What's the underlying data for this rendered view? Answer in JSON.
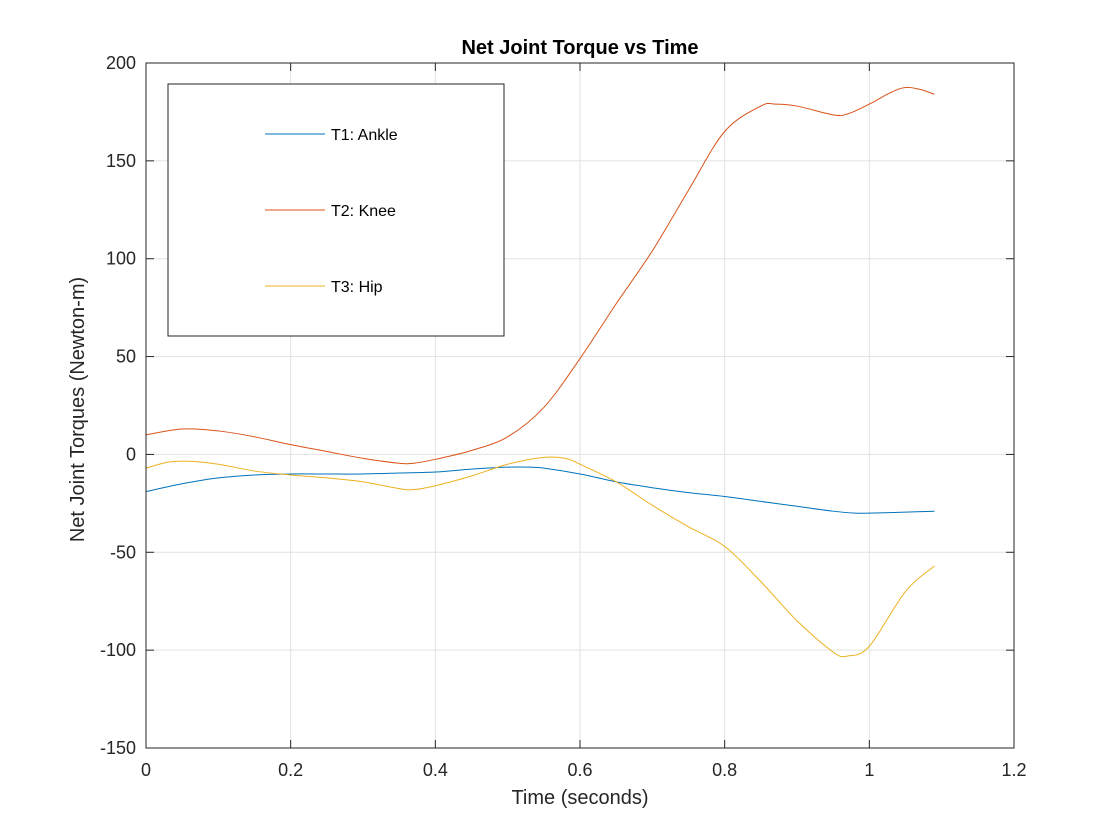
{
  "chart_data": {
    "type": "line",
    "title": "Net Joint Torque vs Time",
    "xlabel": "Time (seconds)",
    "ylabel": "Net Joint Torques (Newton-m)",
    "xlim": [
      0,
      1.2
    ],
    "ylim": [
      -150,
      200
    ],
    "xticks": [
      0,
      0.2,
      0.4,
      0.6,
      0.8,
      1,
      1.2
    ],
    "xtick_labels": [
      "0",
      "0.2",
      "0.4",
      "0.6",
      "0.8",
      "1",
      "1.2"
    ],
    "yticks": [
      -150,
      -100,
      -50,
      0,
      50,
      100,
      150,
      200
    ],
    "ytick_labels": [
      "-150",
      "-100",
      "-50",
      "0",
      "50",
      "100",
      "150",
      "200"
    ],
    "grid": true,
    "legend_position": "top-left",
    "series": [
      {
        "name": "T1: Ankle",
        "color": "#0072BD",
        "x": [
          0,
          0.05,
          0.1,
          0.15,
          0.2,
          0.25,
          0.3,
          0.35,
          0.4,
          0.45,
          0.5,
          0.53,
          0.55,
          0.6,
          0.65,
          0.7,
          0.75,
          0.8,
          0.85,
          0.9,
          0.95,
          0.98,
          1.0,
          1.05,
          1.09
        ],
        "y": [
          -19,
          -15,
          -12,
          -10.5,
          -10,
          -10,
          -10,
          -9.5,
          -9,
          -7.5,
          -6.5,
          -6.5,
          -7,
          -10,
          -14,
          -17,
          -19.5,
          -21.5,
          -24,
          -26.5,
          -29,
          -30,
          -30,
          -29.5,
          -29
        ]
      },
      {
        "name": "T2: Knee",
        "color": "#D95319",
        "x": [
          0,
          0.05,
          0.1,
          0.15,
          0.2,
          0.25,
          0.3,
          0.35,
          0.37,
          0.4,
          0.45,
          0.5,
          0.55,
          0.6,
          0.65,
          0.7,
          0.75,
          0.8,
          0.85,
          0.87,
          0.9,
          0.95,
          0.97,
          1.0,
          1.03,
          1.05,
          1.07,
          1.09
        ],
        "y": [
          10,
          13,
          12,
          9,
          5,
          1.5,
          -2,
          -4.5,
          -4.5,
          -2.5,
          2,
          9,
          24,
          49,
          77,
          104,
          135,
          165,
          178,
          179,
          178,
          173.5,
          174,
          179,
          185,
          187.5,
          186.5,
          184
        ]
      },
      {
        "name": "T3: Hip",
        "color": "#EDB120",
        "x": [
          0,
          0.03,
          0.06,
          0.1,
          0.15,
          0.2,
          0.25,
          0.3,
          0.35,
          0.37,
          0.4,
          0.45,
          0.5,
          0.55,
          0.58,
          0.6,
          0.65,
          0.7,
          0.75,
          0.8,
          0.85,
          0.9,
          0.95,
          0.97,
          1.0,
          1.05,
          1.09
        ],
        "y": [
          -7,
          -4,
          -3.5,
          -5,
          -8.5,
          -10.5,
          -12,
          -14,
          -17.5,
          -18,
          -16,
          -11,
          -5,
          -1.5,
          -2,
          -5,
          -14,
          -26,
          -37,
          -47,
          -65,
          -85,
          -101,
          -103,
          -98,
          -70,
          -57
        ]
      }
    ]
  }
}
